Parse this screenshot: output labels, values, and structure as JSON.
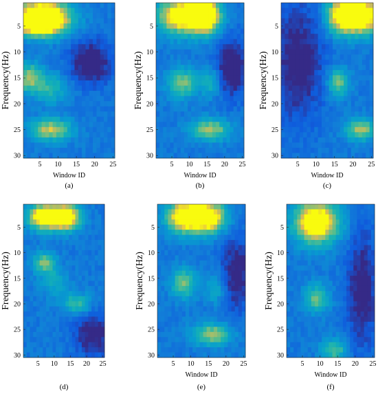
{
  "chart_data": [
    {
      "type": "heatmap",
      "panel_label": "(a)",
      "xlabel": "Window ID",
      "ylabel": "Frequency(Hz)",
      "xlim": [
        0.5,
        25.5
      ],
      "ylim": [
        0.5,
        30.5
      ],
      "y_reversed": true,
      "xticks": [
        5,
        10,
        15,
        20,
        25
      ],
      "yticks": [
        5,
        10,
        15,
        20,
        25,
        30
      ],
      "colormap": "parula",
      "hot_spots": [
        {
          "x": 6,
          "y": 3,
          "sx": 5,
          "sy": 2.5,
          "v": 0.95
        },
        {
          "x": 3,
          "y": 4.5,
          "sx": 6,
          "sy": 1.5,
          "v": 0.6
        },
        {
          "x": 2,
          "y": 15,
          "sx": 2.5,
          "sy": 2,
          "v": 0.55
        },
        {
          "x": 8,
          "y": 17,
          "sx": 3,
          "sy": 2,
          "v": 0.35
        },
        {
          "x": 8,
          "y": 25,
          "sx": 4,
          "sy": 1.5,
          "v": 0.6
        }
      ],
      "cool_spots": [
        {
          "x": 19,
          "y": 12,
          "sx": 4,
          "sy": 3,
          "v": 0.4
        }
      ]
    },
    {
      "type": "heatmap",
      "panel_label": "(b)",
      "xlabel": "Window ID",
      "ylabel": "Frequency(Hz)",
      "xlim": [
        0.5,
        25.5
      ],
      "ylim": [
        0.5,
        30.5
      ],
      "y_reversed": true,
      "xticks": [
        5,
        10,
        15,
        20,
        25
      ],
      "yticks": [
        5,
        10,
        15,
        20,
        25,
        30
      ],
      "colormap": "parula",
      "hot_spots": [
        {
          "x": 8,
          "y": 3,
          "sx": 5,
          "sy": 2.5,
          "v": 0.9
        },
        {
          "x": 15,
          "y": 3,
          "sx": 3,
          "sy": 2.5,
          "v": 0.75
        },
        {
          "x": 8,
          "y": 16,
          "sx": 3,
          "sy": 2,
          "v": 0.5
        },
        {
          "x": 16,
          "y": 16,
          "sx": 2,
          "sy": 2,
          "v": 0.3
        },
        {
          "x": 16,
          "y": 25,
          "sx": 4,
          "sy": 1.5,
          "v": 0.55
        }
      ],
      "cool_spots": [
        {
          "x": 22,
          "y": 13,
          "sx": 3,
          "sy": 4,
          "v": 0.4
        }
      ]
    },
    {
      "type": "heatmap",
      "panel_label": "(c)",
      "xlabel": "Window ID",
      "ylabel": "Frequency(Hz)",
      "xlim": [
        0.5,
        25.5
      ],
      "ylim": [
        0.5,
        30.5
      ],
      "y_reversed": true,
      "xticks": [
        5,
        10,
        15,
        20,
        25
      ],
      "yticks": [
        5,
        10,
        15,
        20,
        25,
        30
      ],
      "colormap": "parula",
      "hot_spots": [
        {
          "x": 17,
          "y": 3,
          "sx": 3,
          "sy": 2.5,
          "v": 0.9
        },
        {
          "x": 23,
          "y": 3,
          "sx": 3,
          "sy": 2.5,
          "v": 0.9
        },
        {
          "x": 16,
          "y": 16,
          "sx": 2,
          "sy": 2,
          "v": 0.5
        },
        {
          "x": 22,
          "y": 25,
          "sx": 3,
          "sy": 1.5,
          "v": 0.55
        }
      ],
      "cool_spots": [
        {
          "x": 5,
          "y": 12,
          "sx": 5,
          "sy": 8,
          "v": 0.35
        }
      ]
    },
    {
      "type": "heatmap",
      "panel_label": "(d)",
      "xlabel": "",
      "ylabel": "Frequency(Hz)",
      "xlim": [
        0.5,
        25.5
      ],
      "ylim": [
        0.5,
        30.5
      ],
      "y_reversed": true,
      "xticks": [
        5,
        10,
        15,
        20,
        25
      ],
      "yticks": [
        5,
        10,
        15,
        20,
        25,
        30
      ],
      "colormap": "parula",
      "hot_spots": [
        {
          "x": 7,
          "y": 3,
          "sx": 3.5,
          "sy": 1.8,
          "v": 0.95
        },
        {
          "x": 14,
          "y": 3,
          "sx": 3,
          "sy": 1.8,
          "v": 0.9
        },
        {
          "x": 7,
          "y": 12,
          "sx": 2.5,
          "sy": 1.5,
          "v": 0.5
        },
        {
          "x": 17,
          "y": 20,
          "sx": 3,
          "sy": 1.5,
          "v": 0.4
        },
        {
          "x": 10,
          "y": 16,
          "sx": 3,
          "sy": 2,
          "v": 0.25
        }
      ],
      "cool_spots": [
        {
          "x": 22,
          "y": 26,
          "sx": 4,
          "sy": 3,
          "v": 0.35
        }
      ]
    },
    {
      "type": "heatmap",
      "panel_label": "(e)",
      "xlabel": "Window ID",
      "ylabel": "Frequency(Hz)",
      "xlim": [
        0.5,
        25.5
      ],
      "ylim": [
        0.5,
        30.5
      ],
      "y_reversed": true,
      "xticks": [
        5,
        10,
        15,
        20,
        25
      ],
      "yticks": [
        5,
        10,
        15,
        20,
        25,
        30
      ],
      "colormap": "parula",
      "hot_spots": [
        {
          "x": 8,
          "y": 3,
          "sx": 3.5,
          "sy": 2.2,
          "v": 0.9
        },
        {
          "x": 15,
          "y": 3,
          "sx": 3.5,
          "sy": 2.2,
          "v": 0.9
        },
        {
          "x": 8,
          "y": 16,
          "sx": 2.5,
          "sy": 2,
          "v": 0.5
        },
        {
          "x": 17,
          "y": 17,
          "sx": 2,
          "sy": 2,
          "v": 0.3
        },
        {
          "x": 16,
          "y": 26,
          "sx": 4,
          "sy": 1.5,
          "v": 0.55
        }
      ],
      "cool_spots": [
        {
          "x": 23,
          "y": 14,
          "sx": 3,
          "sy": 5,
          "v": 0.35
        }
      ]
    },
    {
      "type": "heatmap",
      "panel_label": "(f)",
      "xlabel": "Window ID",
      "ylabel": "Frequency(Hz)",
      "xlim": [
        0.5,
        25.5
      ],
      "ylim": [
        0.5,
        30.5
      ],
      "y_reversed": true,
      "xticks": [
        5,
        10,
        15,
        20,
        25
      ],
      "yticks": [
        5,
        10,
        15,
        20,
        25,
        30
      ],
      "colormap": "parula",
      "hot_spots": [
        {
          "x": 9,
          "y": 4,
          "sx": 4.5,
          "sy": 3,
          "v": 0.95
        },
        {
          "x": 9,
          "y": 19,
          "sx": 2.5,
          "sy": 2,
          "v": 0.45
        },
        {
          "x": 14,
          "y": 29,
          "sx": 2.5,
          "sy": 1.5,
          "v": 0.45
        }
      ],
      "cool_spots": [
        {
          "x": 22,
          "y": 17,
          "sx": 3,
          "sy": 8,
          "v": 0.35
        }
      ]
    }
  ]
}
